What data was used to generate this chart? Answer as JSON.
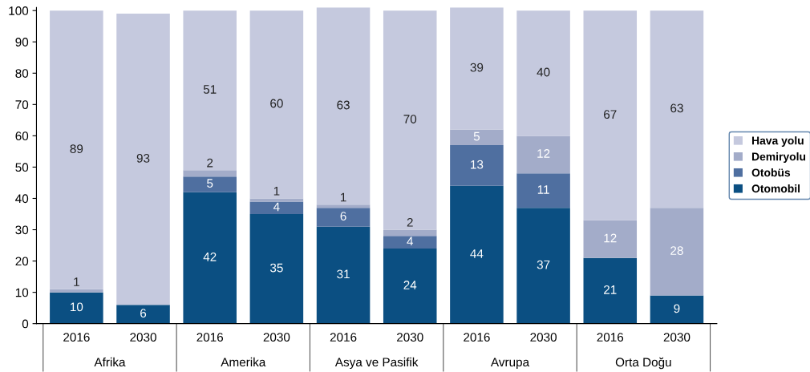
{
  "chart_data": {
    "type": "bar",
    "stacked": true,
    "categories": [
      "2016",
      "2030",
      "2016",
      "2030",
      "2016",
      "2030",
      "2016",
      "2030",
      "2016",
      "2030"
    ],
    "annotations": [
      "Afrika",
      "Amerika",
      "Asya ve Pasifik",
      "Avrupa",
      "Orta Doğu"
    ],
    "series": [
      {
        "name": "Otomobil",
        "color": "#0b4f82",
        "values": [
          10,
          6,
          42,
          35,
          31,
          24,
          44,
          37,
          21,
          9
        ]
      },
      {
        "name": "Otobüs",
        "color": "#4f6fa0",
        "values": [
          null,
          null,
          5,
          4,
          6,
          4,
          13,
          11,
          null,
          null
        ]
      },
      {
        "name": "Demiryolu",
        "color": "#a3acc9",
        "values": [
          1,
          null,
          2,
          1,
          1,
          2,
          5,
          12,
          12,
          28
        ]
      },
      {
        "name": "Hava yolu",
        "color": "#c5c9de",
        "values": [
          89,
          93,
          51,
          60,
          63,
          70,
          39,
          40,
          67,
          63
        ]
      }
    ],
    "data_labels": true,
    "ylim": [
      0,
      101
    ],
    "yticks": [
      0,
      10,
      20,
      30,
      40,
      50,
      60,
      70,
      80,
      90,
      100
    ],
    "grid": false,
    "legend": "right"
  }
}
